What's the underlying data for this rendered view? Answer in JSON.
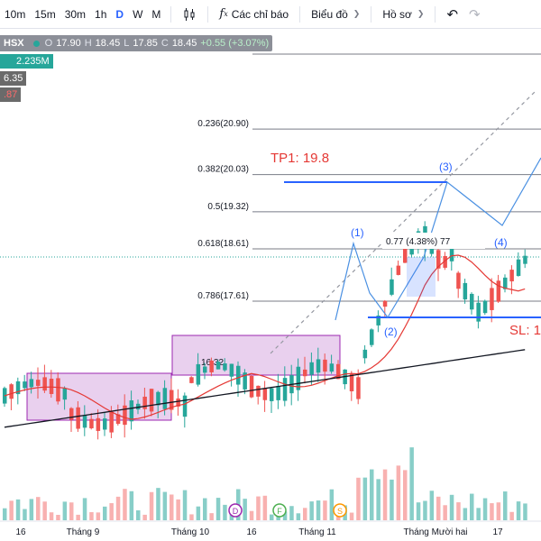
{
  "toolbar": {
    "timeframes": [
      "10m",
      "15m",
      "30m",
      "1h",
      "D",
      "W",
      "M"
    ],
    "active_timeframe": "D",
    "indicators_label": "Các chỉ báo",
    "layouts_label": "Biểu đồ",
    "profile_label": "Hồ sơ"
  },
  "legend": {
    "symbol": "HSX",
    "open_key": "O",
    "open": "17.90",
    "high_key": "H",
    "high": "18.45",
    "low_key": "L",
    "low": "17.85",
    "close_key": "C",
    "close": "18.45",
    "change": "+0.55 (+3.07%)",
    "volume": "2.235M",
    "ma1": "6.35",
    "ma2": ".87"
  },
  "fib_levels": [
    {
      "label": "0.236(20.90)",
      "price": 20.9
    },
    {
      "label": "0.382(20.03)",
      "price": 20.03
    },
    {
      "label": "0.5(19.32)",
      "price": 19.32
    },
    {
      "label": "0.618(18.61)",
      "price": 18.61
    },
    {
      "label": "0.786(17.61)",
      "price": 17.61
    }
  ],
  "annotations": {
    "tp1": "TP1: 19.8",
    "sl": "SL: 1",
    "measure": "0.77 (4.38%) 77",
    "box_price": "16.32",
    "waves": [
      "(1)",
      "(2)",
      "(3)",
      "(4)"
    ]
  },
  "events": [
    "D",
    "F",
    "S"
  ],
  "x_axis": [
    "16",
    "Tháng 9",
    "Tháng 10",
    "16",
    "Tháng 11",
    "Tháng Mười hai",
    "17"
  ],
  "colors": {
    "up": "#26a69a",
    "down": "#ef5350",
    "accent": "#2962ff",
    "box": "#9c27b0"
  }
}
